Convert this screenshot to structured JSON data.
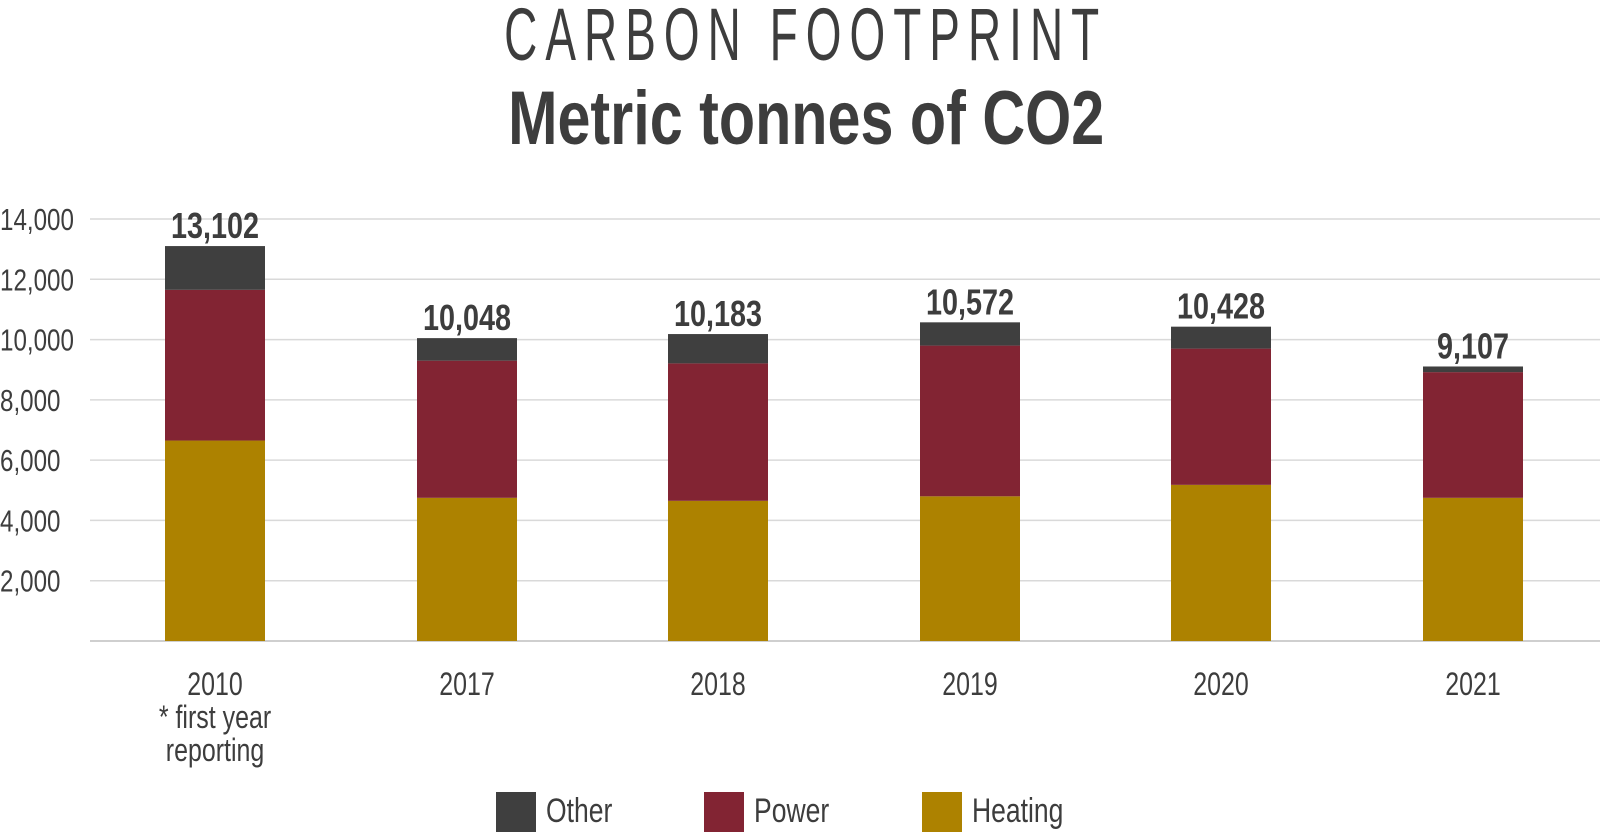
{
  "chart_data": {
    "type": "bar",
    "stacked": true,
    "title": "CARBON FOOTPRINT",
    "subtitle": "Metric tonnes of CO2",
    "categories": [
      "2010",
      "2017",
      "2018",
      "2019",
      "2020",
      "2021"
    ],
    "category_notes": {
      "2010": [
        "* first year",
        "reporting"
      ]
    },
    "series": [
      {
        "name": "Heating",
        "color": "#ad8200",
        "values": [
          6650,
          4750,
          4650,
          4800,
          5180,
          4750
        ]
      },
      {
        "name": "Power",
        "color": "#822433",
        "values": [
          5000,
          4550,
          4560,
          5000,
          4520,
          4170
        ]
      },
      {
        "name": "Other",
        "color": "#3f3f3f",
        "values": [
          1452,
          748,
          973,
          772,
          728,
          187
        ]
      }
    ],
    "totals": [
      "13,102",
      "10,048",
      "10,183",
      "10,572",
      "10,428",
      "9,107"
    ],
    "yticks": [
      "2,000",
      "4,000",
      "6,000",
      "8,000",
      "10,000",
      "12,000",
      "14,000"
    ],
    "ytick_values": [
      2000,
      4000,
      6000,
      8000,
      10000,
      12000,
      14000
    ],
    "ylim": [
      0,
      14000
    ],
    "grid": true,
    "legend_position": "bottom",
    "legend_order": [
      "Other",
      "Power",
      "Heating"
    ]
  }
}
